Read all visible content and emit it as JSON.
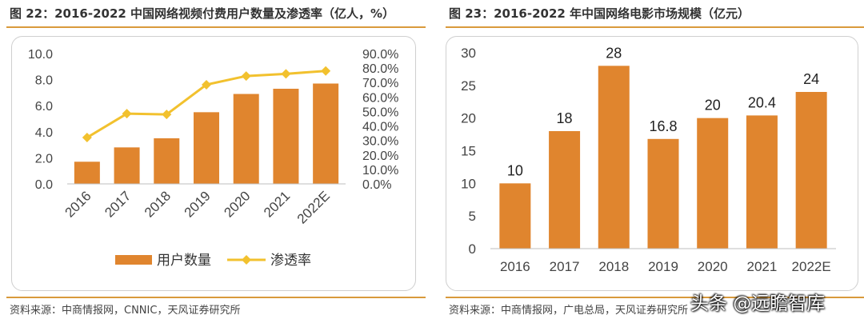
{
  "left": {
    "title": "图 22：2016-2022 中国网络视频付费用户数量及渗透率（亿人，%）",
    "source": "资料来源：中商情报网，CNNIC，天风证券研究所"
  },
  "right": {
    "title": "图 23：2016-2022 年中国网络电影市场规模（亿元）",
    "source": "资料来源：中商情报网，广电总局，天风证券研究所"
  },
  "watermark": "头条 @远瞻智库",
  "colors": {
    "bar": "#E0852E",
    "line": "#F2C12E",
    "rule": "#D99A3C"
  },
  "chart_data": [
    {
      "type": "bar",
      "categories": [
        "2016",
        "2017",
        "2018",
        "2019",
        "2020",
        "2021",
        "2022E"
      ],
      "series": [
        {
          "name": "用户数量",
          "type": "bar",
          "axis": "left",
          "values": [
            1.7,
            2.8,
            3.5,
            5.5,
            6.9,
            7.3,
            7.7
          ]
        },
        {
          "name": "渗透率",
          "type": "line",
          "axis": "right",
          "values": [
            32.0,
            48.5,
            48.0,
            68.5,
            74.5,
            76.0,
            78.0
          ]
        }
      ],
      "ylim": [
        0,
        10
      ],
      "y_ticks": [
        "0.0",
        "2.0",
        "4.0",
        "6.0",
        "8.0",
        "10.0"
      ],
      "y2lim": [
        0,
        90
      ],
      "y2_ticks": [
        "0.0%",
        "10.0%",
        "20.0%",
        "30.0%",
        "40.0%",
        "50.0%",
        "60.0%",
        "70.0%",
        "80.0%",
        "90.0%"
      ],
      "legend": "bottom",
      "grid": false
    },
    {
      "type": "bar",
      "categories": [
        "2016",
        "2017",
        "2018",
        "2019",
        "2020",
        "2021",
        "2022E"
      ],
      "values": [
        10,
        18,
        28,
        16.8,
        20,
        20.4,
        24
      ],
      "data_labels": [
        "10",
        "18",
        "28",
        "16.8",
        "20",
        "20.4",
        "24"
      ],
      "ylim": [
        0,
        30
      ],
      "y_ticks": [
        "0",
        "5",
        "10",
        "15",
        "20",
        "25",
        "30"
      ],
      "grid": false
    }
  ]
}
